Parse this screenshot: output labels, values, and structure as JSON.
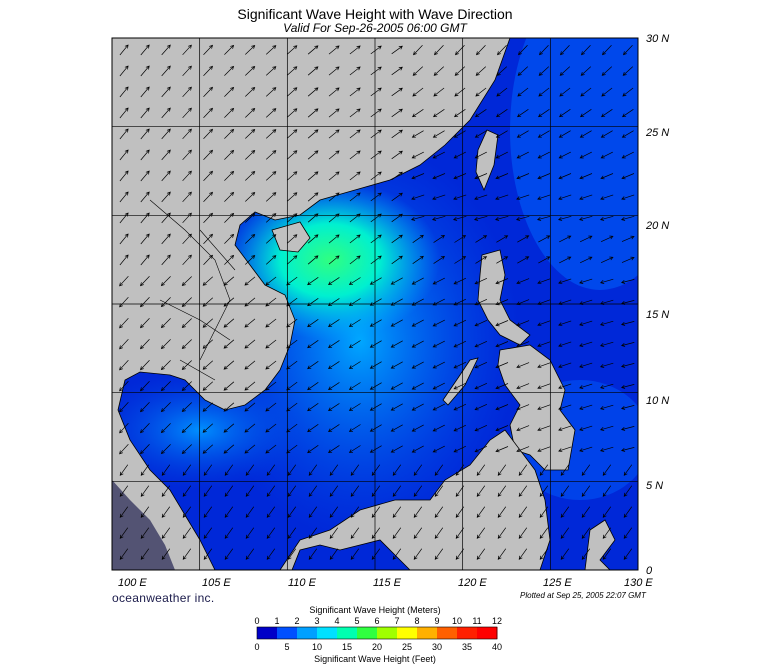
{
  "header": {
    "title": "Significant Wave Height with Wave Direction",
    "subtitle": "Valid For Sep-26-2005 06:00 GMT"
  },
  "map": {
    "lat_labels": [
      "30 N",
      "25 N",
      "20 N",
      "15 N",
      "10 N",
      "5 N",
      "0"
    ],
    "lon_labels": [
      "100 E",
      "105 E",
      "110 E",
      "115 E",
      "120 E",
      "125 E",
      "130 E"
    ],
    "lat_range": [
      0,
      30
    ],
    "lon_range": [
      100,
      130
    ],
    "land_color": "#c0c0c0",
    "grid": true
  },
  "footer": {
    "brand": "oceanweather inc.",
    "plotted": "Plotted at Sep 25, 2005 22:07 GMT"
  },
  "legend": {
    "title_meters": "Significant Wave Height (Meters)",
    "title_feet": "Significant Wave Height (Feet)",
    "meter_ticks": [
      "0",
      "1",
      "2",
      "3",
      "4",
      "5",
      "6",
      "7",
      "8",
      "9",
      "10",
      "11",
      "12"
    ],
    "feet_ticks": [
      "0",
      "5",
      "10",
      "15",
      "20",
      "25",
      "30",
      "35",
      "40"
    ],
    "colors": [
      "#0000c8",
      "#0050ff",
      "#00a0ff",
      "#00e0ff",
      "#00ffb0",
      "#30ff40",
      "#a0ff00",
      "#ffff00",
      "#ffb000",
      "#ff6000",
      "#ff2000",
      "#ff0000"
    ]
  }
}
